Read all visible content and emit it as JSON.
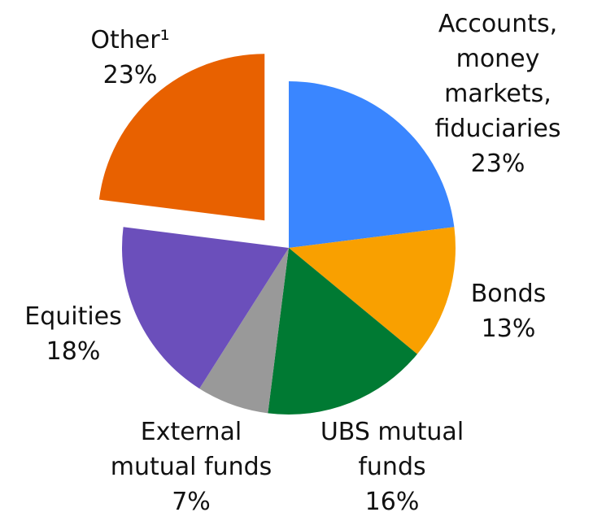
{
  "chart_data": {
    "type": "pie",
    "categories": [
      "Accounts, money markets, fiduciaries",
      "Bonds",
      "UBS mutual funds",
      "External mutual funds",
      "Equities",
      "Other¹"
    ],
    "values": [
      23,
      13,
      16,
      7,
      18,
      23
    ],
    "value_labels": [
      "23%",
      "13%",
      "16%",
      "7%",
      "18%",
      "23%"
    ],
    "colors": [
      "#3a86ff",
      "#f9a000",
      "#007a33",
      "#999999",
      "#6b4fbb",
      "#e86100"
    ],
    "explode": [
      false,
      false,
      false,
      false,
      false,
      true
    ]
  }
}
